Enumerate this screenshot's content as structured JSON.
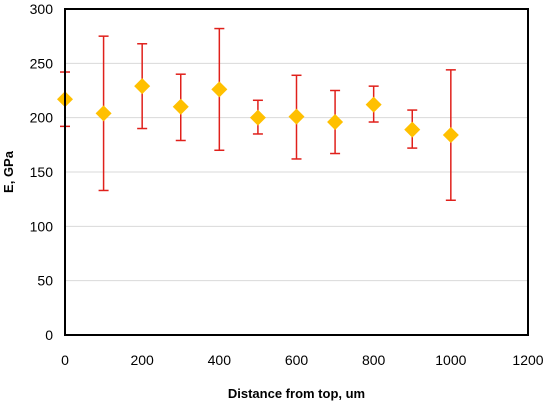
{
  "chart_data": {
    "type": "scatter",
    "title": "",
    "xlabel": "Distance from top, um",
    "ylabel": "E, GPa",
    "xlim": [
      0,
      1200
    ],
    "ylim": [
      0,
      300
    ],
    "xticks": [
      0,
      200,
      400,
      600,
      800,
      1000,
      1200
    ],
    "yticks": [
      0,
      50,
      100,
      150,
      200,
      250,
      300
    ],
    "grid": {
      "horizontal": true,
      "vertical": false
    },
    "legend": "none",
    "marker": "diamond",
    "marker_color": "#FFC000",
    "error_bar_color": "#E0201B",
    "grid_color": "#D9D9D9",
    "points": [
      {
        "x": 0,
        "y": 217,
        "low": 192,
        "high": 242
      },
      {
        "x": 100,
        "y": 204,
        "low": 133,
        "high": 275
      },
      {
        "x": 200,
        "y": 229,
        "low": 190,
        "high": 268
      },
      {
        "x": 300,
        "y": 210,
        "low": 179,
        "high": 240
      },
      {
        "x": 400,
        "y": 226,
        "low": 170,
        "high": 282
      },
      {
        "x": 500,
        "y": 200,
        "low": 185,
        "high": 216
      },
      {
        "x": 600,
        "y": 201,
        "low": 162,
        "high": 239
      },
      {
        "x": 700,
        "y": 196,
        "low": 167,
        "high": 225
      },
      {
        "x": 800,
        "y": 212,
        "low": 196,
        "high": 229
      },
      {
        "x": 900,
        "y": 189,
        "low": 172,
        "high": 207
      },
      {
        "x": 1000,
        "y": 184,
        "low": 124,
        "high": 244
      }
    ]
  }
}
